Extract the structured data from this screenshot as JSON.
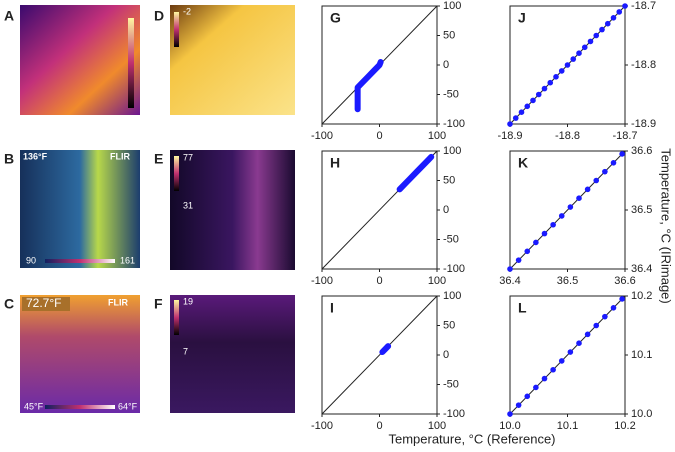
{
  "figure": {
    "xlabel": "Temperature, °C (Reference)",
    "ylabel": "Temperature, °C (IRimage)"
  },
  "images": [
    {
      "label": "A"
    },
    {
      "label": "D",
      "texts": [
        "-2"
      ]
    },
    {
      "label": "B",
      "texts": [
        "136°F",
        "FLIR",
        "90",
        "161"
      ]
    },
    {
      "label": "E",
      "texts": [
        "77",
        "31"
      ]
    },
    {
      "label": "C",
      "texts": [
        "72.7°F",
        "FLIR",
        "45°F",
        "64°F"
      ]
    },
    {
      "label": "F",
      "texts": [
        "19",
        "7"
      ]
    }
  ],
  "chart_data": [
    {
      "type": "scatter",
      "title": "G",
      "mode": "line",
      "color": "#1a1aff",
      "x": [
        -38,
        -38,
        -38,
        -38,
        -38,
        -30,
        -20,
        -10,
        0,
        2
      ],
      "y": [
        -75,
        -65,
        -55,
        -45,
        -38,
        -30,
        -20,
        -10,
        0,
        5
      ],
      "xlim": [
        -100,
        100
      ],
      "ylim": [
        -100,
        100
      ],
      "xticks": [
        -100,
        0,
        100
      ],
      "yticks": [
        100,
        50,
        0,
        -50,
        -100
      ]
    },
    {
      "type": "scatter",
      "title": "H",
      "mode": "line",
      "color": "#1a1aff",
      "x": [
        35,
        45,
        55,
        65,
        75,
        85,
        90
      ],
      "y": [
        35,
        45,
        55,
        65,
        75,
        85,
        90
      ],
      "xlim": [
        -100,
        100
      ],
      "ylim": [
        -100,
        100
      ],
      "xticks": [
        -100,
        0,
        100
      ],
      "yticks": [
        100,
        50,
        0,
        -50,
        -100
      ]
    },
    {
      "type": "scatter",
      "title": "I",
      "mode": "line",
      "color": "#1a1aff",
      "x": [
        5,
        10,
        15
      ],
      "y": [
        5,
        10,
        15
      ],
      "xlim": [
        -100,
        100
      ],
      "ylim": [
        -100,
        100
      ],
      "xticks": [
        -100,
        0,
        100
      ],
      "yticks": [
        100,
        50,
        0,
        -50,
        -100
      ]
    },
    {
      "type": "scatter",
      "title": "J",
      "mode": "markers",
      "color": "#1a1aff",
      "x": [
        -18.9,
        -18.89,
        -18.88,
        -18.87,
        -18.86,
        -18.85,
        -18.84,
        -18.83,
        -18.82,
        -18.81,
        -18.8,
        -18.79,
        -18.78,
        -18.77,
        -18.76,
        -18.75,
        -18.74,
        -18.73,
        -18.72,
        -18.71,
        -18.7
      ],
      "y": [
        -18.9,
        -18.89,
        -18.88,
        -18.87,
        -18.86,
        -18.85,
        -18.84,
        -18.83,
        -18.82,
        -18.81,
        -18.8,
        -18.79,
        -18.78,
        -18.77,
        -18.76,
        -18.75,
        -18.74,
        -18.73,
        -18.72,
        -18.71,
        -18.7
      ],
      "xlim": [
        -18.9,
        -18.7
      ],
      "ylim": [
        -18.9,
        -18.7
      ],
      "xticks": [
        -18.9,
        -18.8,
        -18.7
      ],
      "yticks": [
        -18.7,
        -18.8,
        -18.9
      ]
    },
    {
      "type": "scatter",
      "title": "K",
      "mode": "markers",
      "color": "#1a1aff",
      "x": [
        36.4,
        36.415,
        36.43,
        36.445,
        36.46,
        36.475,
        36.49,
        36.505,
        36.52,
        36.535,
        36.55,
        36.565,
        36.58,
        36.595
      ],
      "y": [
        36.4,
        36.415,
        36.43,
        36.445,
        36.46,
        36.475,
        36.49,
        36.505,
        36.52,
        36.535,
        36.55,
        36.565,
        36.58,
        36.595
      ],
      "xlim": [
        36.4,
        36.6
      ],
      "ylim": [
        36.4,
        36.6
      ],
      "xticks": [
        36.4,
        36.5,
        36.6
      ],
      "yticks": [
        36.6,
        36.5,
        36.4
      ]
    },
    {
      "type": "scatter",
      "title": "L",
      "mode": "markers",
      "color": "#1a1aff",
      "x": [
        10,
        10.015,
        10.03,
        10.045,
        10.06,
        10.075,
        10.09,
        10.105,
        10.12,
        10.135,
        10.15,
        10.165,
        10.18,
        10.195
      ],
      "y": [
        10,
        10.015,
        10.03,
        10.045,
        10.06,
        10.075,
        10.09,
        10.105,
        10.12,
        10.135,
        10.15,
        10.165,
        10.18,
        10.195
      ],
      "xlim": [
        10,
        10.2
      ],
      "ylim": [
        10,
        10.2
      ],
      "xticks": [
        {
          "value": 10,
          "label": "10.0"
        },
        10.1,
        10.2
      ],
      "yticks": [
        10.2,
        10.1,
        {
          "value": 10,
          "label": "10.0"
        }
      ]
    }
  ]
}
